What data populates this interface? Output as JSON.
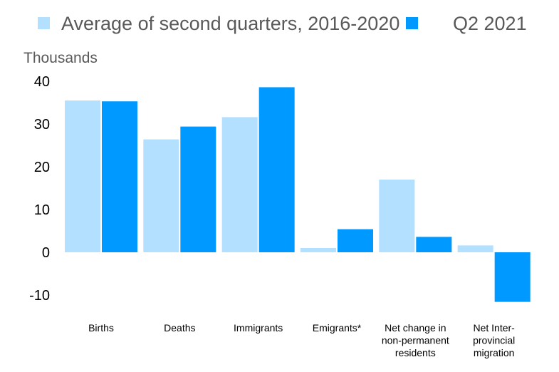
{
  "chart_data": {
    "type": "bar",
    "title": "",
    "ylabel": "Thousands",
    "xlabel": "",
    "ylim": [
      -10,
      40
    ],
    "yticks": [
      40,
      30,
      20,
      10,
      0,
      -10
    ],
    "categories": [
      [
        "Births"
      ],
      [
        "Deaths"
      ],
      [
        "Immigrants"
      ],
      [
        "Emigrants*"
      ],
      [
        "Net change in",
        "non-permanent",
        "residents"
      ],
      [
        "Net Inter-",
        "provincial",
        "migration"
      ]
    ],
    "series": [
      {
        "name": "Average of second quarters, 2016-2020",
        "color": "#b3e0ff",
        "values": [
          35.5,
          26.4,
          31.6,
          1.0,
          17.0,
          1.6
        ]
      },
      {
        "name": "Q2 2021",
        "color": "#0099ff",
        "values": [
          35.3,
          29.4,
          38.6,
          5.4,
          3.6,
          -11.6
        ]
      }
    ],
    "legend_position": "top",
    "grid": false
  }
}
